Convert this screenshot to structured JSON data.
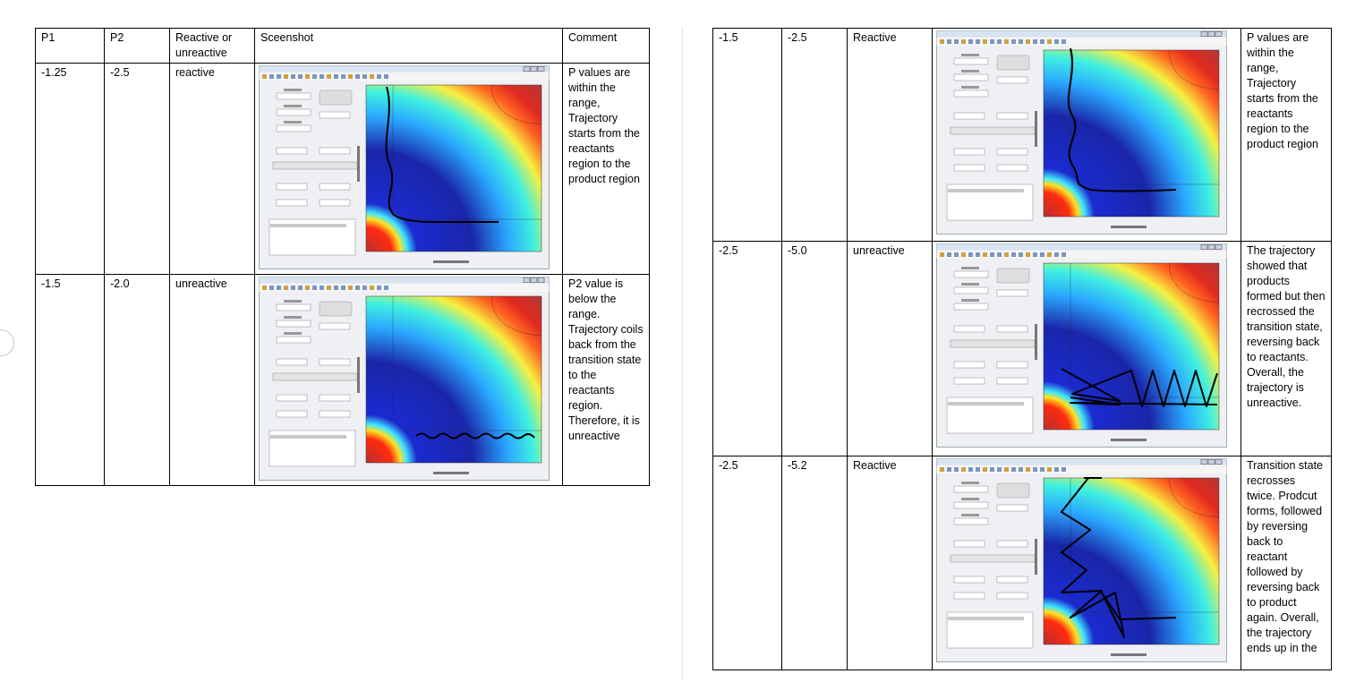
{
  "left_table": {
    "header": [
      "P1",
      "P2",
      "Reactive or unreactive",
      "Sceenshot",
      "Comment"
    ],
    "rows": [
      [
        "-1.25",
        "-2.5",
        "reactive",
        "P values are within the range, Trajectory starts from the reactants region to the product region"
      ],
      [
        "-1.5",
        "-2.0",
        "unreactive",
        "P2 value is below the range. Trajectory coils back from the transition state to the reactants region. Therefore, it is unreactive"
      ]
    ]
  },
  "right_table": {
    "rows": [
      [
        "-1.5",
        "-2.5",
        "Reactive",
        "P values are within the range, Trajectory starts from the reactants region to the product region"
      ],
      [
        "-2.5",
        "-5.0",
        "unreactive",
        "The trajectory showed that products formed but then recrossed the transition state, reversing back to reactants. Overall, the trajectory is unreactive."
      ],
      [
        "-2.5",
        "-5.2",
        "Reactive",
        "Transition state recrosses twice. Prodcut forms, followed by reversing back to reactant followed by reversing back to product again. Overall, the trajectory ends up in the"
      ]
    ]
  }
}
